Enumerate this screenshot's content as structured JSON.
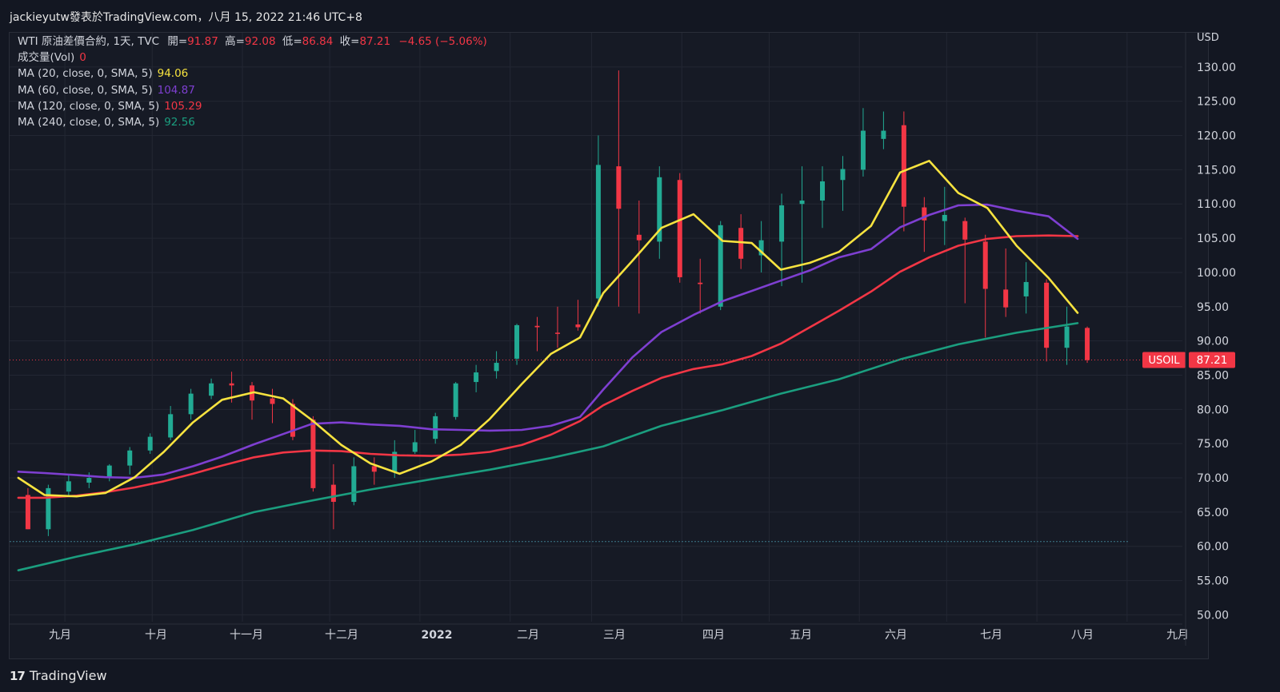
{
  "attribution": "jackieyutw發表於TradingView.com，八月 15, 2022 21:46 UTC+8",
  "legend": {
    "instrument": "WTI 原油差價合約, 1天, TVC",
    "ohlc": [
      {
        "label": "開=",
        "value": "91.87"
      },
      {
        "label": "高=",
        "value": "92.08"
      },
      {
        "label": "低=",
        "value": "86.84"
      },
      {
        "label": "收=",
        "value": "87.21"
      }
    ],
    "change": "−4.65 (−5.06%)",
    "volume_label": "成交量(Vol)",
    "volume_value": "0",
    "ma": [
      {
        "label": "MA (20, close, 0, SMA, 5)",
        "value": "94.06",
        "color": "#f7e33f"
      },
      {
        "label": "MA (60, close, 0, SMA, 5)",
        "value": "104.87",
        "color": "#7e3fd1"
      },
      {
        "label": "MA (120, close, 0, SMA, 5)",
        "value": "105.29",
        "color": "#f23645"
      },
      {
        "label": "MA (240, close, 0, SMA, 5)",
        "value": "92.56",
        "color": "#1b9e7f"
      }
    ]
  },
  "price_axis": {
    "currency": "USD",
    "ticks": [
      "50.00",
      "55.00",
      "60.00",
      "65.00",
      "70.00",
      "75.00",
      "80.00",
      "85.00",
      "90.00",
      "95.00",
      "100.00",
      "105.00",
      "110.00",
      "115.00",
      "120.00",
      "125.00",
      "130.00"
    ]
  },
  "time_axis": {
    "ticks": [
      "九月",
      "十月",
      "十一月",
      "十二月",
      "2022",
      "二月",
      "三月",
      "四月",
      "五月",
      "六月",
      "七月",
      "八月",
      "九月"
    ]
  },
  "last_price": {
    "symbol": "USOIL",
    "value": "87.21",
    "color": "#f23645"
  },
  "footer": {
    "brand": "TradingView"
  },
  "chart_data": {
    "type": "line",
    "title": "WTI 原油差價合約, 1天, TVC",
    "ylabel": "USD",
    "ylim": [
      49,
      135
    ],
    "xrange": [
      "2021-08-13",
      "2022-09-20"
    ],
    "grid": true,
    "series": [
      {
        "name": "MA (20, close, 0, SMA, 5)",
        "color": "#f7e33f",
        "x": [
          "2021-08-16",
          "2021-08-25",
          "2021-09-05",
          "2021-09-15",
          "2021-09-25",
          "2021-10-05",
          "2021-10-15",
          "2021-10-25",
          "2021-11-05",
          "2021-11-15",
          "2021-11-25",
          "2021-12-05",
          "2021-12-15",
          "2021-12-25",
          "2022-01-05",
          "2022-01-15",
          "2022-01-25",
          "2022-02-05",
          "2022-02-15",
          "2022-02-25",
          "2022-03-05",
          "2022-03-15",
          "2022-03-25",
          "2022-04-05",
          "2022-04-15",
          "2022-04-25",
          "2022-05-05",
          "2022-05-15",
          "2022-05-25",
          "2022-06-05",
          "2022-06-15",
          "2022-06-25",
          "2022-07-05",
          "2022-07-15",
          "2022-07-25",
          "2022-08-05",
          "2022-08-15"
        ],
        "y": [
          70.0,
          67.5,
          67.3,
          67.8,
          70.1,
          73.8,
          78.1,
          81.4,
          82.5,
          81.6,
          78.4,
          74.8,
          72.1,
          70.6,
          72.4,
          74.8,
          78.6,
          83.7,
          88.1,
          90.5,
          97.0,
          101.7,
          106.5,
          108.5,
          104.6,
          104.3,
          100.4,
          101.4,
          103.0,
          106.8,
          114.6,
          116.3,
          111.6,
          109.4,
          103.9,
          99.2,
          94.1
        ]
      },
      {
        "name": "MA (60, close, 0, SMA, 5)",
        "color": "#7e3fd1",
        "x": [
          "2021-08-16",
          "2021-08-25",
          "2021-09-05",
          "2021-09-15",
          "2021-09-25",
          "2021-10-05",
          "2021-10-15",
          "2021-10-25",
          "2021-11-05",
          "2021-11-15",
          "2021-11-25",
          "2021-12-05",
          "2021-12-15",
          "2021-12-25",
          "2022-01-05",
          "2022-01-15",
          "2022-01-25",
          "2022-02-05",
          "2022-02-15",
          "2022-02-25",
          "2022-03-05",
          "2022-03-15",
          "2022-03-25",
          "2022-04-05",
          "2022-04-15",
          "2022-04-25",
          "2022-05-05",
          "2022-05-15",
          "2022-05-25",
          "2022-06-05",
          "2022-06-15",
          "2022-06-25",
          "2022-07-05",
          "2022-07-15",
          "2022-07-25",
          "2022-08-05",
          "2022-08-15"
        ],
        "y": [
          70.9,
          70.7,
          70.4,
          70.1,
          70.0,
          70.5,
          71.7,
          73.1,
          74.9,
          76.4,
          77.9,
          78.1,
          77.8,
          77.6,
          77.1,
          77.0,
          76.9,
          77.0,
          77.6,
          78.9,
          82.9,
          87.6,
          91.3,
          93.8,
          95.8,
          97.3,
          98.8,
          100.3,
          102.2,
          103.4,
          106.6,
          108.4,
          109.8,
          109.9,
          109.0,
          108.2,
          104.9
        ]
      },
      {
        "name": "MA (120, close, 0, SMA, 5)",
        "color": "#f23645",
        "x": [
          "2021-08-16",
          "2021-08-25",
          "2021-09-05",
          "2021-09-15",
          "2021-09-25",
          "2021-10-05",
          "2021-10-15",
          "2021-10-25",
          "2021-11-05",
          "2021-11-15",
          "2021-11-25",
          "2021-12-05",
          "2021-12-15",
          "2021-12-25",
          "2022-01-05",
          "2022-01-15",
          "2022-01-25",
          "2022-02-05",
          "2022-02-15",
          "2022-02-25",
          "2022-03-05",
          "2022-03-15",
          "2022-03-25",
          "2022-04-05",
          "2022-04-15",
          "2022-04-25",
          "2022-05-05",
          "2022-05-15",
          "2022-05-25",
          "2022-06-05",
          "2022-06-15",
          "2022-06-25",
          "2022-07-05",
          "2022-07-15",
          "2022-07-25",
          "2022-08-05",
          "2022-08-15"
        ],
        "y": [
          67.1,
          67.1,
          67.4,
          67.9,
          68.6,
          69.5,
          70.6,
          71.8,
          73.0,
          73.7,
          74.0,
          73.9,
          73.5,
          73.3,
          73.2,
          73.4,
          73.8,
          74.8,
          76.3,
          78.3,
          80.6,
          82.7,
          84.6,
          85.9,
          86.6,
          87.8,
          89.6,
          92.0,
          94.4,
          97.2,
          100.1,
          102.2,
          103.9,
          104.9,
          105.3,
          105.4,
          105.3
        ]
      },
      {
        "name": "MA (240, close, 0, SMA, 5)",
        "color": "#1b9e7f",
        "x": [
          "2021-08-16",
          "2021-09-05",
          "2021-09-25",
          "2021-10-15",
          "2021-11-05",
          "2021-11-25",
          "2021-12-15",
          "2022-01-05",
          "2022-01-25",
          "2022-02-15",
          "2022-03-05",
          "2022-03-25",
          "2022-04-15",
          "2022-05-05",
          "2022-05-25",
          "2022-06-15",
          "2022-07-05",
          "2022-07-25",
          "2022-08-15"
        ],
        "y": [
          56.5,
          58.5,
          60.3,
          62.4,
          65.0,
          66.7,
          68.3,
          69.8,
          71.2,
          72.9,
          74.6,
          77.6,
          79.9,
          82.3,
          84.4,
          87.3,
          89.5,
          91.2,
          92.6
        ]
      }
    ],
    "candles": {
      "up_color": "#22ab94",
      "down_color": "#f23645",
      "last_close": 87.21,
      "dates": [
        "2021-08-16",
        "2021-08-23",
        "2021-08-30",
        "2021-09-06",
        "2021-09-13",
        "2021-09-20",
        "2021-09-27",
        "2021-10-04",
        "2021-10-11",
        "2021-10-18",
        "2021-10-25",
        "2021-11-01",
        "2021-11-08",
        "2021-11-15",
        "2021-11-22",
        "2021-11-29",
        "2021-12-06",
        "2021-12-13",
        "2021-12-20",
        "2021-12-27",
        "2022-01-03",
        "2022-01-10",
        "2022-01-17",
        "2022-01-24",
        "2022-01-31",
        "2022-02-07",
        "2022-02-14",
        "2022-02-21",
        "2022-02-28",
        "2022-03-07",
        "2022-03-14",
        "2022-03-21",
        "2022-03-28",
        "2022-04-04",
        "2022-04-11",
        "2022-04-18",
        "2022-04-25",
        "2022-05-02",
        "2022-05-09",
        "2022-05-16",
        "2022-05-23",
        "2022-05-30",
        "2022-06-06",
        "2022-06-13",
        "2022-06-20",
        "2022-06-27",
        "2022-07-04",
        "2022-07-11",
        "2022-07-18",
        "2022-07-25",
        "2022-08-01",
        "2022-08-08",
        "2022-08-15"
      ],
      "open": [
        67.5,
        62.5,
        68.0,
        69.3,
        70.0,
        71.8,
        74.0,
        75.9,
        79.3,
        82.0,
        83.8,
        83.5,
        81.6,
        80.8,
        78.5,
        69.0,
        66.5,
        71.7,
        70.9,
        73.8,
        75.7,
        78.9,
        84.0,
        85.6,
        87.4,
        92.2,
        91.2,
        92.4,
        96.2,
        115.5,
        105.5,
        104.5,
        113.5,
        98.5,
        95.0,
        106.5,
        102.5,
        104.5,
        110.0,
        110.5,
        113.5,
        115.0,
        119.5,
        121.5,
        109.5,
        107.5,
        107.5,
        104.5,
        97.5,
        96.5,
        98.5,
        89.0,
        91.9
      ],
      "high": [
        68.5,
        69.0,
        70.5,
        70.8,
        72.0,
        74.5,
        76.5,
        80.5,
        83.0,
        84.5,
        85.5,
        84.0,
        83.0,
        81.5,
        79.0,
        72.0,
        73.0,
        73.0,
        75.5,
        77.0,
        79.5,
        84.0,
        86.5,
        88.5,
        92.5,
        93.5,
        95.0,
        96.0,
        120.0,
        129.5,
        110.5,
        115.5,
        114.5,
        102.0,
        107.5,
        108.5,
        107.5,
        111.5,
        115.5,
        115.5,
        117.0,
        124.0,
        123.5,
        123.5,
        111.0,
        112.5,
        108.0,
        105.5,
        103.5,
        101.5,
        99.0,
        95.0,
        92.1
      ],
      "low": [
        62.5,
        61.5,
        67.5,
        68.5,
        69.5,
        70.5,
        73.5,
        75.5,
        78.5,
        81.5,
        81.0,
        78.5,
        78.0,
        75.5,
        68.0,
        62.5,
        66.0,
        69.0,
        70.0,
        73.5,
        75.0,
        78.5,
        82.5,
        84.5,
        86.5,
        88.5,
        89.0,
        91.5,
        95.0,
        95.0,
        94.0,
        102.0,
        98.5,
        94.0,
        94.5,
        100.5,
        100.0,
        98.0,
        98.5,
        106.5,
        109.0,
        114.0,
        118.0,
        106.0,
        103.0,
        104.0,
        95.5,
        90.5,
        93.5,
        94.0,
        87.0,
        86.5,
        86.8
      ],
      "close": [
        62.5,
        68.5,
        69.5,
        70.0,
        71.8,
        74.0,
        76.0,
        79.3,
        82.3,
        83.8,
        83.5,
        81.3,
        80.8,
        76.0,
        68.5,
        66.5,
        71.7,
        70.9,
        73.8,
        75.2,
        79.0,
        83.8,
        85.4,
        86.8,
        92.3,
        92.0,
        91.1,
        92.0,
        115.7,
        109.3,
        104.7,
        113.9,
        99.3,
        98.3,
        106.9,
        102.0,
        104.7,
        109.8,
        110.5,
        113.3,
        115.1,
        120.7,
        120.7,
        109.6,
        107.6,
        108.4,
        104.8,
        97.6,
        94.9,
        98.6,
        89.0,
        92.1,
        87.2
      ]
    }
  }
}
